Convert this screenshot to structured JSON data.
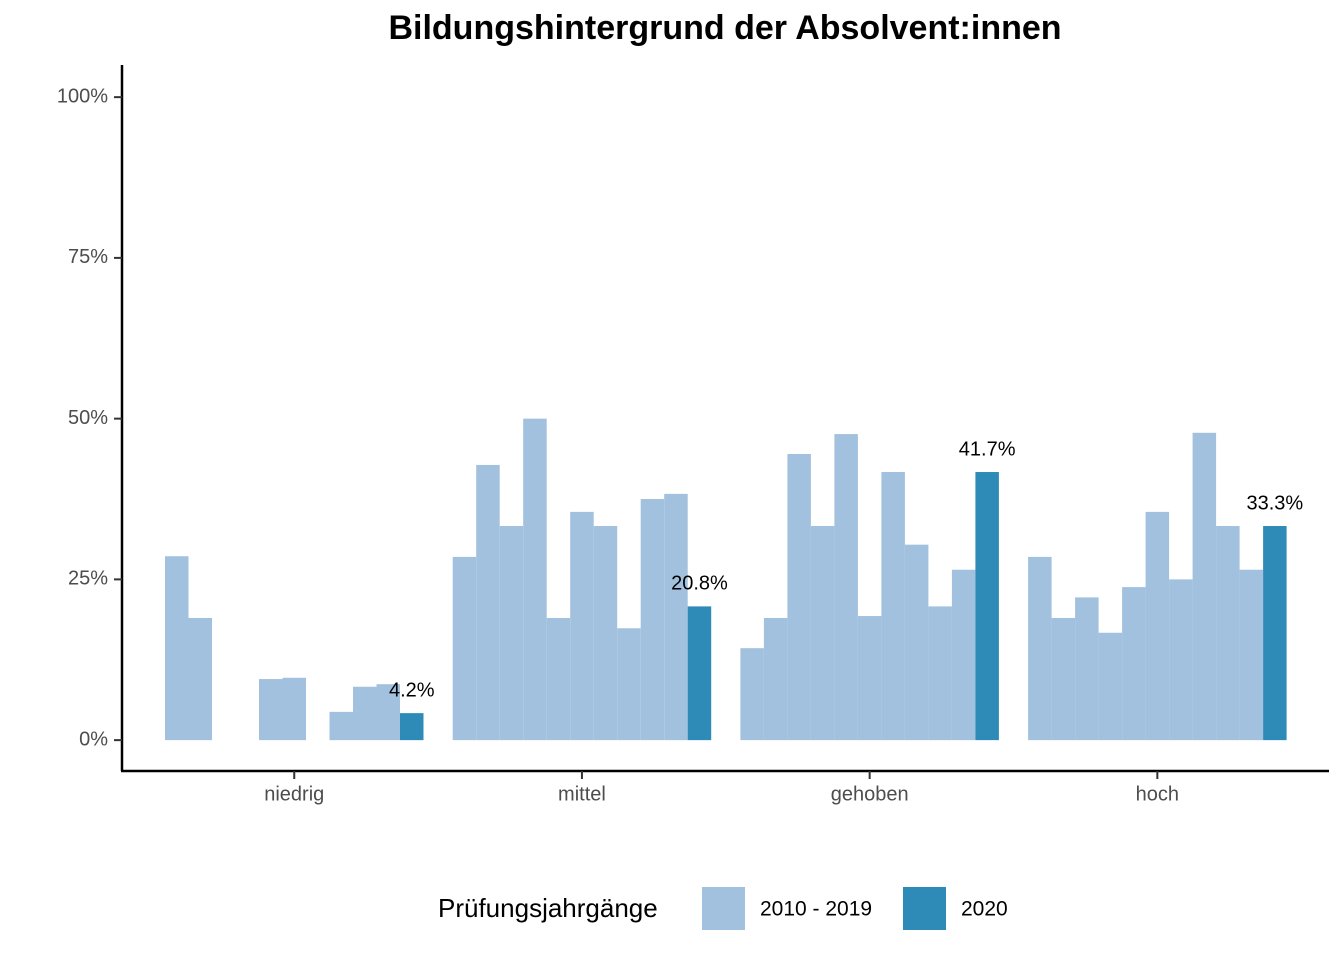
{
  "chart_data": {
    "type": "bar",
    "title": "Bildungshintergrund der Absolvent:innen",
    "categories": [
      "niedrig",
      "mittel",
      "gehoben",
      "hoch"
    ],
    "series": [
      {
        "name": "2010 - 2019",
        "color": "#a1c1de",
        "values": [
          [
            28.6,
            19.0,
            0,
            0,
            9.5,
            9.7,
            0,
            4.4,
            8.3,
            8.7
          ],
          [
            28.5,
            42.8,
            33.3,
            50.0,
            19.0,
            35.5,
            33.3,
            17.4,
            37.5,
            38.3
          ],
          [
            14.3,
            19.0,
            44.5,
            33.3,
            47.6,
            19.3,
            41.7,
            30.4,
            20.8,
            26.5
          ],
          [
            28.5,
            19.0,
            22.2,
            16.7,
            23.8,
            35.5,
            25.0,
            47.8,
            33.3,
            26.5
          ]
        ]
      },
      {
        "name": "2020",
        "color": "#2e8bb8",
        "values": [
          4.2,
          20.8,
          41.7,
          33.3
        ],
        "value_labels": [
          "4.2%",
          "20.8%",
          "41.7%",
          "33.3%"
        ]
      }
    ],
    "ylim": [
      -4.8,
      105
    ],
    "yticks": [
      {
        "value": 0,
        "label": "0%"
      },
      {
        "value": 25,
        "label": "25%"
      },
      {
        "value": 50,
        "label": "50%"
      },
      {
        "value": 75,
        "label": "75%"
      },
      {
        "value": 100,
        "label": "100%"
      }
    ],
    "grid": false,
    "legend_title": "Prüfungsjahrgänge",
    "legend_position": "bottom"
  }
}
